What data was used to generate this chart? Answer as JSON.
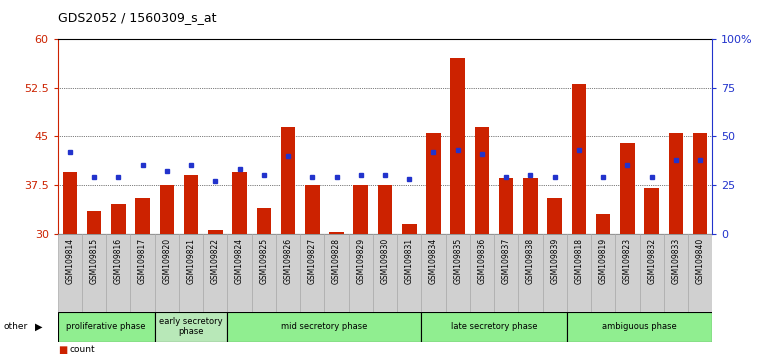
{
  "title": "GDS2052 / 1560309_s_at",
  "samples": [
    "GSM109814",
    "GSM109815",
    "GSM109816",
    "GSM109817",
    "GSM109820",
    "GSM109821",
    "GSM109822",
    "GSM109824",
    "GSM109825",
    "GSM109826",
    "GSM109827",
    "GSM109828",
    "GSM109829",
    "GSM109830",
    "GSM109831",
    "GSM109834",
    "GSM109835",
    "GSM109836",
    "GSM109837",
    "GSM109838",
    "GSM109839",
    "GSM109818",
    "GSM109819",
    "GSM109823",
    "GSM109832",
    "GSM109833",
    "GSM109840"
  ],
  "counts": [
    39.5,
    33.5,
    34.5,
    35.5,
    37.5,
    39.0,
    30.5,
    39.5,
    34.0,
    46.5,
    37.5,
    30.2,
    37.5,
    37.5,
    31.5,
    45.5,
    57.0,
    46.5,
    38.5,
    38.5,
    35.5,
    53.0,
    33.0,
    44.0,
    37.0,
    45.5,
    45.5
  ],
  "percentiles": [
    42,
    29,
    29,
    35,
    32,
    35,
    27,
    33,
    30,
    40,
    29,
    29,
    30,
    30,
    28,
    42,
    43,
    41,
    29,
    30,
    29,
    43,
    29,
    35,
    29,
    38,
    38
  ],
  "phases": [
    {
      "name": "proliferative phase",
      "color": "#90EE90",
      "start": 0,
      "end": 4
    },
    {
      "name": "early secretory\nphase",
      "color": "#b8e8b8",
      "start": 4,
      "end": 7
    },
    {
      "name": "mid secretory phase",
      "color": "#90EE90",
      "start": 7,
      "end": 15
    },
    {
      "name": "late secretory phase",
      "color": "#90EE90",
      "start": 15,
      "end": 21
    },
    {
      "name": "ambiguous phase",
      "color": "#90EE90",
      "start": 21,
      "end": 27
    }
  ],
  "ylim_left": [
    30,
    60
  ],
  "ylim_right": [
    0,
    100
  ],
  "yticks_left": [
    30,
    37.5,
    45,
    52.5,
    60
  ],
  "yticks_right": [
    0,
    25,
    50,
    75,
    100
  ],
  "bar_color": "#cc2200",
  "dot_color": "#2233cc",
  "tick_label_bg": "#d0d0d0",
  "title_fontsize": 9,
  "tick_fontsize": 5.5,
  "axis_fontsize": 8
}
